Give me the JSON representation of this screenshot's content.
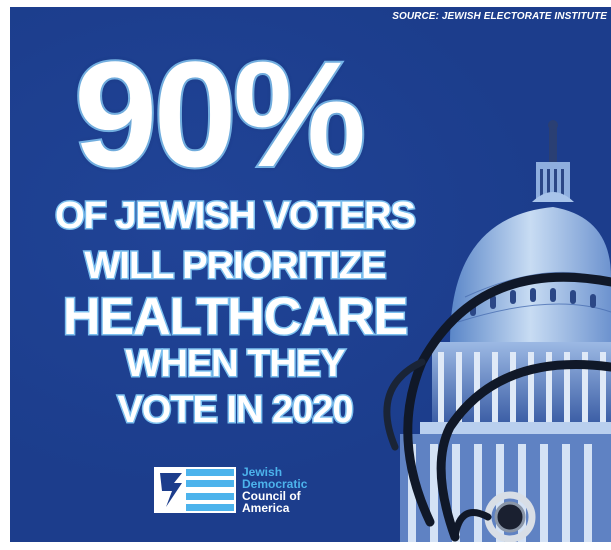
{
  "source": "SOURCE: JEWISH ELECTORATE INSTITUTE",
  "headline": {
    "stat": "90%",
    "lines": [
      "OF JEWISH VOTERS",
      "WILL PRIORITIZE",
      "HEALTHCARE",
      "WHEN THEY",
      "VOTE IN 2020"
    ]
  },
  "logo": {
    "lines": [
      "Jewish",
      "Democratic",
      "Council of",
      "America"
    ]
  },
  "colors": {
    "background": "#1c3d8c",
    "outline": "#78b8ec",
    "logo_accent": "#4cb3ec",
    "text": "#ffffff"
  },
  "icons": [
    "capitol-dome-icon",
    "stethoscope-icon",
    "star-of-david-logo-icon"
  ]
}
